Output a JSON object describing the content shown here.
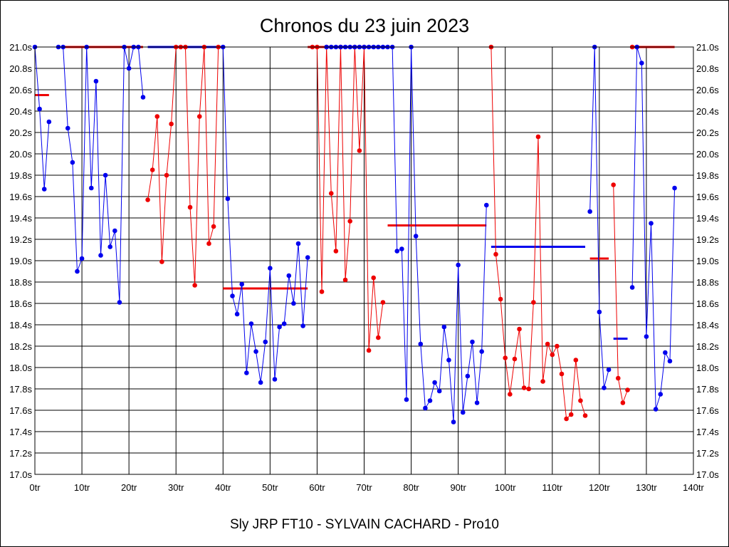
{
  "chart_data": {
    "type": "line",
    "title": "Chronos du 23 juin 2023",
    "footer": "Sly JRP FT10 - SYLVAIN CACHARD - Pro10",
    "xlim": [
      0,
      140
    ],
    "ylim": [
      17.0,
      21.0
    ],
    "x_ticks": [
      0,
      10,
      20,
      30,
      40,
      50,
      60,
      70,
      80,
      90,
      100,
      110,
      120,
      130,
      140
    ],
    "x_tick_labels": [
      "0tr",
      "10tr",
      "20tr",
      "30tr",
      "40tr",
      "50tr",
      "60tr",
      "70tr",
      "80tr",
      "90tr",
      "100tr",
      "110tr",
      "120tr",
      "130tr",
      "140tr"
    ],
    "y_ticks": [
      17.0,
      17.2,
      17.4,
      17.6,
      17.8,
      18.0,
      18.2,
      18.4,
      18.6,
      18.8,
      19.0,
      19.2,
      19.4,
      19.6,
      19.8,
      20.0,
      20.2,
      20.4,
      20.6,
      20.8,
      21.0
    ],
    "y_tick_labels": [
      "17.0s",
      "17.2s",
      "17.4s",
      "17.6s",
      "17.8s",
      "18.0s",
      "18.2s",
      "18.4s",
      "18.6s",
      "18.8s",
      "19.0s",
      "19.2s",
      "19.4s",
      "19.6s",
      "19.8s",
      "20.0s",
      "20.2s",
      "20.4s",
      "20.6s",
      "20.8s",
      "21.0s"
    ],
    "grid": true,
    "colors": {
      "blue": "#0000ee",
      "red": "#ee0000",
      "grid": "#000000"
    },
    "series": [
      {
        "color": "blue",
        "x": [
          0,
          1,
          2,
          3
        ],
        "y": [
          21.0,
          20.42,
          19.67,
          20.3
        ]
      },
      {
        "color": "blue",
        "x": [
          5,
          6,
          7,
          8,
          9,
          10,
          11,
          12,
          13,
          14,
          15,
          16,
          17,
          18,
          19,
          20,
          21,
          22,
          23
        ],
        "y": [
          21.0,
          21.0,
          20.24,
          19.92,
          18.9,
          19.02,
          21.0,
          19.68,
          20.68,
          19.05,
          19.8,
          19.13,
          19.28,
          18.61,
          21.0,
          20.8,
          21.0,
          21.0,
          20.53
        ]
      },
      {
        "color": "red",
        "x": [
          24,
          25,
          26,
          27,
          28,
          29,
          30,
          31,
          32,
          33,
          34,
          35,
          36,
          37,
          38,
          39
        ],
        "y": [
          19.57,
          19.85,
          20.35,
          18.99,
          19.8,
          20.28,
          21.0,
          21.0,
          21.0,
          19.5,
          18.77,
          20.35,
          21.0,
          19.16,
          19.32,
          21.0
        ]
      },
      {
        "color": "blue",
        "x": [
          40,
          41,
          42,
          43,
          44,
          45,
          46,
          47,
          48,
          49,
          50,
          51,
          52,
          53,
          54,
          55,
          56,
          57,
          58
        ],
        "y": [
          21.0,
          19.58,
          18.67,
          18.5,
          18.78,
          17.95,
          18.41,
          18.15,
          17.86,
          18.24,
          18.93,
          17.89,
          18.38,
          18.41,
          18.86,
          18.6,
          19.16,
          18.39,
          19.03
        ]
      },
      {
        "color": "red",
        "x": [
          59,
          60,
          61,
          62,
          63,
          64,
          65,
          66,
          67,
          68,
          69,
          70,
          71,
          72,
          73,
          74
        ],
        "y": [
          21.0,
          21.0,
          18.71,
          21.0,
          19.63,
          19.09,
          21.0,
          18.82,
          19.37,
          21.0,
          20.03,
          21.0,
          18.16,
          18.84,
          18.28,
          18.61
        ]
      },
      {
        "color": "blue",
        "x": [
          62,
          63,
          64,
          65,
          66,
          67,
          68,
          69,
          70,
          71,
          72,
          73,
          74,
          75,
          76,
          77,
          78,
          79,
          80,
          81,
          82,
          83,
          84,
          85,
          86,
          87,
          88,
          89,
          90,
          91,
          92,
          93,
          94,
          95,
          96
        ],
        "y": [
          21.0,
          21.0,
          21.0,
          21.0,
          21.0,
          21.0,
          21.0,
          21.0,
          21.0,
          21.0,
          21.0,
          21.0,
          21.0,
          21.0,
          21.0,
          19.09,
          19.11,
          17.7,
          21.0,
          19.23,
          18.22,
          17.62,
          17.69,
          17.86,
          17.78,
          18.38,
          18.07,
          17.49,
          18.96,
          17.58,
          17.92,
          18.24,
          17.67,
          18.15,
          19.52
        ]
      },
      {
        "color": "red",
        "x": [
          97,
          98,
          99,
          100,
          101,
          102,
          103,
          104,
          105,
          106,
          107,
          108,
          109,
          110,
          111,
          112,
          113,
          114,
          115,
          116,
          117
        ],
        "y": [
          21.0,
          19.06,
          18.64,
          18.09,
          17.75,
          18.08,
          18.36,
          17.81,
          17.8,
          18.61,
          20.16,
          17.87,
          18.22,
          18.12,
          18.2,
          17.94,
          17.52,
          17.56,
          18.07,
          17.69,
          17.55
        ]
      },
      {
        "color": "blue",
        "x": [
          118,
          119,
          120,
          121,
          122
        ],
        "y": [
          19.46,
          21.0,
          18.52,
          17.81,
          17.98
        ]
      },
      {
        "color": "red",
        "x": [
          123,
          124,
          125,
          126
        ],
        "y": [
          19.71,
          17.9,
          17.67,
          17.79
        ]
      },
      {
        "color": "red",
        "x": [
          127,
          128
        ],
        "y": [
          21.0,
          21.0
        ]
      },
      {
        "color": "blue",
        "x": [
          127,
          128,
          129,
          130,
          131,
          132,
          133,
          134,
          135,
          136
        ],
        "y": [
          18.75,
          21.0,
          20.85,
          18.29,
          19.35,
          17.61,
          17.75,
          18.14,
          18.06,
          19.68
        ]
      }
    ],
    "averages": [
      {
        "color": "red",
        "x0": 0,
        "x1": 3,
        "y": 20.55
      },
      {
        "color": "red",
        "x0": 6,
        "x1": 23,
        "y": 21.0
      },
      {
        "color": "blue",
        "x0": 24,
        "x1": 40,
        "y": 21.0
      },
      {
        "color": "red",
        "x0": 40,
        "x1": 58,
        "y": 18.74
      },
      {
        "color": "red",
        "x0": 58,
        "x1": 62,
        "y": 21.0
      },
      {
        "color": "blue",
        "x0": 62,
        "x1": 75,
        "y": 21.0
      },
      {
        "color": "red",
        "x0": 75,
        "x1": 96,
        "y": 19.33
      },
      {
        "color": "blue",
        "x0": 97,
        "x1": 117,
        "y": 19.13
      },
      {
        "color": "red",
        "x0": 118,
        "x1": 122,
        "y": 19.02
      },
      {
        "color": "blue",
        "x0": 123,
        "x1": 126,
        "y": 18.27
      },
      {
        "color": "red",
        "x0": 127,
        "x1": 136,
        "y": 21.0
      }
    ]
  }
}
